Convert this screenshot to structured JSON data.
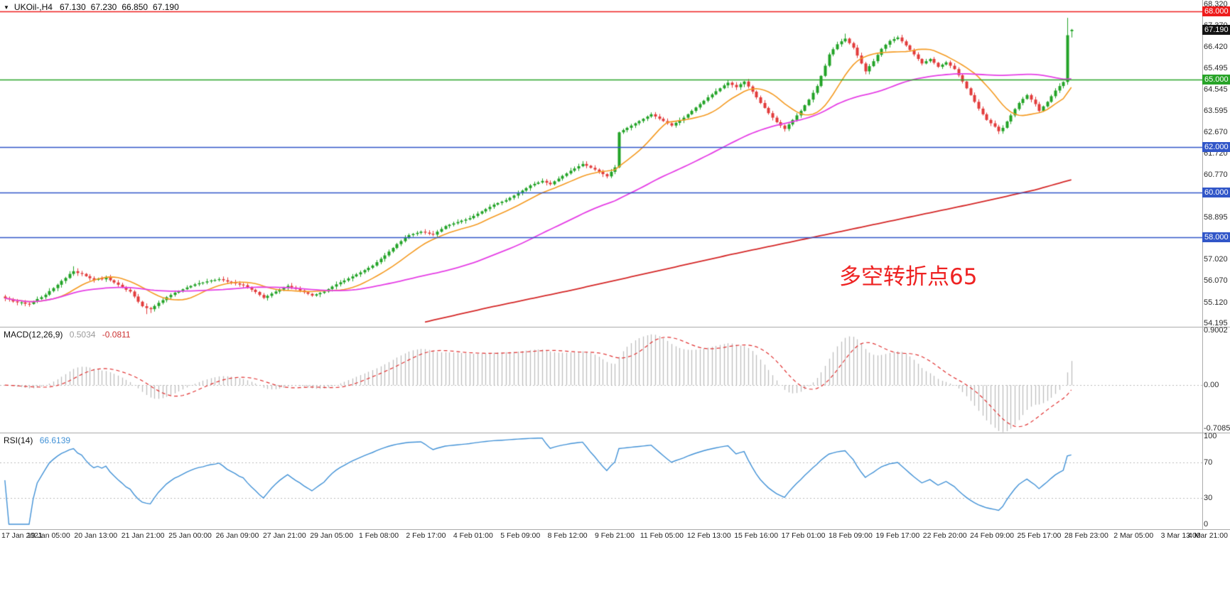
{
  "icons": {
    "dropdown": "▼"
  },
  "header": {
    "symbol_period": "UKOil-,H4",
    "open": "67.130",
    "high": "67.230",
    "low": "66.850",
    "close": "67.190"
  },
  "colors": {
    "up": "#22a327",
    "down": "#e23b3b",
    "ma_fast": "#f49a21",
    "ma_mid": "#e53ee5",
    "ma_slow": "#d42626",
    "macd_hist": "#bdbdbd",
    "macd_signal": "#e03030",
    "rsi_line": "#4191d6",
    "badge_current": "#141414",
    "annotation": "#ee2222",
    "macd_value": "#9a9a9a",
    "macd_signal_value": "#cc3333",
    "rsi_value": "#4191d6"
  },
  "main_chart": {
    "price_top": 68.51,
    "price_bottom": 54.04,
    "price_labels": [
      {
        "text": "68.320",
        "value": 68.32
      },
      {
        "text": "67.370",
        "value": 67.37
      },
      {
        "text": "66.420",
        "value": 66.42
      },
      {
        "text": "65.495",
        "value": 65.495
      },
      {
        "text": "64.545",
        "value": 64.545
      },
      {
        "text": "63.595",
        "value": 63.595
      },
      {
        "text": "62.670",
        "value": 62.67
      },
      {
        "text": "61.720",
        "value": 61.72
      },
      {
        "text": "60.770",
        "value": 60.77
      },
      {
        "text": "59.845",
        "value": 59.845
      },
      {
        "text": "58.895",
        "value": 58.895
      },
      {
        "text": "57.945",
        "value": 57.945
      },
      {
        "text": "57.020",
        "value": 57.02
      },
      {
        "text": "56.070",
        "value": 56.07
      },
      {
        "text": "55.120",
        "value": 55.12
      },
      {
        "text": "54.195",
        "value": 54.195
      }
    ],
    "hlines": [
      {
        "label": "68.000",
        "value": 68.0,
        "color": "#ee1c1c"
      },
      {
        "label": "65.000",
        "value": 65.0,
        "color": "#28a428"
      },
      {
        "label": "62.000",
        "value": 62.0,
        "color": "#3156c8"
      },
      {
        "label": "60.000",
        "value": 60.0,
        "color": "#3156c8"
      },
      {
        "label": "58.000",
        "value": 58.0,
        "color": "#3156c8"
      }
    ],
    "current_price": {
      "label": "67.190",
      "value": 67.19
    },
    "annotation": {
      "text": "多空转折点65"
    }
  },
  "macd_panel": {
    "name": "MACD(12,26,9)",
    "main_value": "0.5034",
    "signal_value": "-0.0811",
    "max": 0.9002,
    "min": -0.7085,
    "axis_labels": [
      {
        "text": "0.9002",
        "value": 0.9002
      },
      {
        "text": "0.00",
        "value": 0
      },
      {
        "text": "-0.7085",
        "value": -0.7085
      }
    ]
  },
  "rsi_panel": {
    "name": "RSI(14)",
    "value": "66.6139",
    "max": 100,
    "min": 0,
    "levels": [
      70,
      30
    ],
    "axis_labels": [
      {
        "text": "100",
        "value": 100
      },
      {
        "text": "70",
        "value": 70
      },
      {
        "text": "30",
        "value": 30
      },
      {
        "text": "0",
        "value": 0
      }
    ]
  },
  "time_axis": {
    "labels": [
      "17 Jan 2021",
      "19 Jan 05:00",
      "20 Jan 13:00",
      "21 Jan 21:00",
      "25 Jan 00:00",
      "26 Jan 09:00",
      "27 Jan 21:00",
      "29 Jan 05:00",
      "1 Feb 08:00",
      "2 Feb 17:00",
      "4 Feb 01:00",
      "5 Feb 09:00",
      "8 Feb 12:00",
      "9 Feb 21:00",
      "11 Feb 05:00",
      "12 Feb 13:00",
      "15 Feb 16:00",
      "17 Feb 01:00",
      "18 Feb 09:00",
      "19 Feb 17:00",
      "22 Feb 20:00",
      "24 Feb 09:00",
      "25 Feb 17:00",
      "28 Feb 23:00",
      "2 Mar 05:00",
      "3 Mar 13:00",
      "4 Mar 21:00"
    ]
  },
  "chart_data": {
    "type": "candlestick",
    "symbol": "UKOil-",
    "timeframe": "H4",
    "first_open": 55.38,
    "closes": [
      55.3,
      55.26,
      55.16,
      55.12,
      55.12,
      55.06,
      55.05,
      55.15,
      55.27,
      55.35,
      55.46,
      55.62,
      55.75,
      55.9,
      56.07,
      56.2,
      56.38,
      56.5,
      56.42,
      56.38,
      56.28,
      56.19,
      56.12,
      56.18,
      56.14,
      56.22,
      56.1,
      56.0,
      55.9,
      55.8,
      55.68,
      55.6,
      55.38,
      55.15,
      54.95,
      54.87,
      54.82,
      54.96,
      55.1,
      55.22,
      55.35,
      55.45,
      55.55,
      55.62,
      55.7,
      55.78,
      55.85,
      55.92,
      55.97,
      56.0,
      56.05,
      56.09,
      56.11,
      56.15,
      56.1,
      56.04,
      56.0,
      55.96,
      55.91,
      55.88,
      55.78,
      55.68,
      55.58,
      55.45,
      55.32,
      55.41,
      55.51,
      55.6,
      55.69,
      55.77,
      55.85,
      55.78,
      55.71,
      55.65,
      55.57,
      55.5,
      55.42,
      55.48,
      55.54,
      55.6,
      55.71,
      55.82,
      55.92,
      56.01,
      56.09,
      56.18,
      56.27,
      56.36,
      56.45,
      56.55,
      56.65,
      56.75,
      56.9,
      57.05,
      57.2,
      57.37,
      57.53,
      57.7,
      57.83,
      57.97,
      58.1,
      58.15,
      58.2,
      58.25,
      58.21,
      58.16,
      58.12,
      58.25,
      58.37,
      58.5,
      58.56,
      58.62,
      58.68,
      58.74,
      58.79,
      58.85,
      58.95,
      59.05,
      59.15,
      59.25,
      59.35,
      59.45,
      59.52,
      59.58,
      59.65,
      59.75,
      59.85,
      59.95,
      60.07,
      60.18,
      60.3,
      60.37,
      60.43,
      60.5,
      60.42,
      60.35,
      60.48,
      60.6,
      60.72,
      60.83,
      60.95,
      61.05,
      61.15,
      61.25,
      61.17,
      61.08,
      61.0,
      60.9,
      60.8,
      60.7,
      60.9,
      61.1,
      62.65,
      62.75,
      62.85,
      62.95,
      63.05,
      63.15,
      63.25,
      63.35,
      63.45,
      63.35,
      63.25,
      63.15,
      63.05,
      62.95,
      63.07,
      63.18,
      63.3,
      63.45,
      63.6,
      63.75,
      63.9,
      64.05,
      64.2,
      64.33,
      64.47,
      64.6,
      64.73,
      64.85,
      64.75,
      64.65,
      64.78,
      64.9,
      64.68,
      64.45,
      64.2,
      63.95,
      63.73,
      63.5,
      63.3,
      63.1,
      62.95,
      62.8,
      63.0,
      63.2,
      63.4,
      63.6,
      63.85,
      64.1,
      64.4,
      64.7,
      65.15,
      65.6,
      66.1,
      66.33,
      66.55,
      66.68,
      66.8,
      66.6,
      66.4,
      66.05,
      65.7,
      65.35,
      65.58,
      65.8,
      66.08,
      66.35,
      66.53,
      66.7,
      66.78,
      66.85,
      66.68,
      66.5,
      66.3,
      66.1,
      65.9,
      65.7,
      65.8,
      65.9,
      65.73,
      65.55,
      65.65,
      65.75,
      65.6,
      65.45,
      65.18,
      64.9,
      64.6,
      64.3,
      64.0,
      63.7,
      63.45,
      63.2,
      63.05,
      62.9,
      62.7,
      62.85,
      63.13,
      63.4,
      63.68,
      63.95,
      64.13,
      64.3,
      64.1,
      63.9,
      63.6,
      63.8,
      64.0,
      64.25,
      64.5,
      64.7,
      64.88,
      66.95,
      67.19
    ],
    "last_candle": {
      "open": 67.13,
      "high": 67.23,
      "low": 66.85,
      "close": 67.19
    },
    "wick_overrides": {
      "17": {
        "high": 56.72
      },
      "35": {
        "low": 54.6
      },
      "36": {
        "low": 54.65
      },
      "208": {
        "high": 67.02
      },
      "263": {
        "high": 67.72
      }
    },
    "overlays": {
      "ma_fast_period": 13,
      "ma_mid_period": 55,
      "ma_slow_points": [
        [
          104,
          54.25
        ],
        [
          120,
          54.9
        ],
        [
          140,
          55.65
        ],
        [
          160,
          56.45
        ],
        [
          180,
          57.25
        ],
        [
          200,
          58.0
        ],
        [
          220,
          58.75
        ],
        [
          240,
          59.5
        ],
        [
          255,
          60.1
        ],
        [
          264,
          60.55
        ]
      ]
    },
    "indicators": {
      "macd": {
        "fast": 12,
        "slow": 26,
        "signal": 9
      },
      "rsi": {
        "period": 14
      }
    }
  }
}
